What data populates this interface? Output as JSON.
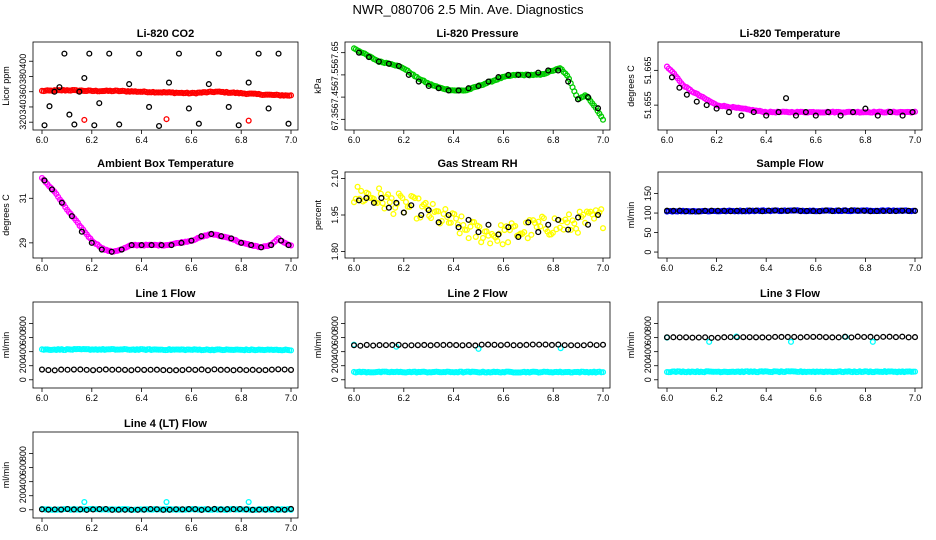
{
  "page_title": "NWR_080706  2.5 Min. Ave. Diagnostics",
  "colors": {
    "black": "#000000",
    "red": "#ff0000",
    "green": "#00cc00",
    "magenta": "#ff00ff",
    "yellow": "#ffff00",
    "blue": "#0000ff",
    "cyan": "#00ffff"
  },
  "chart_data": [
    {
      "id": "li820-co2",
      "type": "scatter",
      "title": "Li-820 CO2",
      "ylabel": "Licor ppm",
      "xlim": [
        6.0,
        7.0
      ],
      "ylim": [
        315,
        420
      ],
      "xticks": [
        "6.0",
        "6.2",
        "6.4",
        "6.6",
        "6.8",
        "7.0"
      ],
      "yticks": [
        "320",
        "340",
        "360",
        "380",
        "400"
      ],
      "series": [
        {
          "name": "red",
          "color": "#ff0000",
          "x": [
            6.0,
            6.1,
            6.2,
            6.3,
            6.4,
            6.5,
            6.6,
            6.7,
            6.8,
            6.9,
            6.99
          ],
          "values": [
            361,
            362,
            361,
            361,
            360,
            359,
            358,
            360,
            358,
            356,
            355
          ],
          "dense": true
        },
        {
          "name": "red-outliers",
          "color": "#ff0000",
          "x": [
            6.17,
            6.5,
            6.83
          ],
          "values": [
            323,
            324,
            322
          ]
        },
        {
          "name": "black",
          "color": "#000000",
          "x": [
            6.01,
            6.03,
            6.05,
            6.07,
            6.09,
            6.11,
            6.13,
            6.15,
            6.17,
            6.19,
            6.21,
            6.23,
            6.27,
            6.31,
            6.35,
            6.39,
            6.43,
            6.47,
            6.51,
            6.55,
            6.59,
            6.63,
            6.67,
            6.71,
            6.75,
            6.79,
            6.83,
            6.87,
            6.91,
            6.95,
            6.99
          ],
          "values": [
            316,
            341,
            360,
            366,
            410,
            330,
            317,
            360,
            378,
            410,
            316,
            345,
            410,
            317,
            370,
            410,
            340,
            315,
            372,
            410,
            338,
            318,
            370,
            410,
            340,
            316,
            372,
            410,
            338,
            410,
            318
          ]
        }
      ]
    },
    {
      "id": "li820-pressure",
      "type": "scatter",
      "title": "Li-820 Pressure",
      "ylabel": "kPa",
      "xlim": [
        6.0,
        7.0
      ],
      "ylim": [
        67.32,
        67.68
      ],
      "xticks": [
        "6.0",
        "6.2",
        "6.4",
        "6.6",
        "6.8",
        "7.0"
      ],
      "yticks": [
        "67.35",
        "67.45",
        "67.55",
        "67.65"
      ],
      "series": [
        {
          "name": "green",
          "color": "#00cc00",
          "x": [
            6.0,
            6.05,
            6.1,
            6.15,
            6.2,
            6.25,
            6.3,
            6.35,
            6.4,
            6.45,
            6.5,
            6.55,
            6.6,
            6.65,
            6.7,
            6.75,
            6.8,
            6.83,
            6.86,
            6.9,
            6.93,
            6.96,
            7.0
          ],
          "values": [
            67.67,
            67.64,
            67.61,
            67.6,
            67.58,
            67.54,
            67.51,
            67.49,
            67.48,
            67.48,
            67.5,
            67.52,
            67.54,
            67.55,
            67.55,
            67.55,
            67.57,
            67.58,
            67.54,
            67.44,
            67.46,
            67.42,
            67.35
          ],
          "dense": true
        },
        {
          "name": "black",
          "color": "#000000",
          "x": [
            6.02,
            6.06,
            6.1,
            6.14,
            6.18,
            6.22,
            6.26,
            6.3,
            6.34,
            6.38,
            6.42,
            6.46,
            6.5,
            6.54,
            6.58,
            6.62,
            6.66,
            6.7,
            6.74,
            6.78,
            6.82,
            6.86,
            6.9,
            6.94,
            6.98
          ],
          "values": [
            67.65,
            67.63,
            67.61,
            67.6,
            67.59,
            67.55,
            67.52,
            67.5,
            67.49,
            67.48,
            67.48,
            67.49,
            67.5,
            67.52,
            67.54,
            67.55,
            67.55,
            67.55,
            67.56,
            67.57,
            67.57,
            67.52,
            67.44,
            67.45,
            67.4
          ]
        }
      ]
    },
    {
      "id": "li820-temperature",
      "type": "scatter",
      "title": "Li-820 Temperature",
      "ylabel": "degrees C",
      "xlim": [
        6.0,
        7.0
      ],
      "ylim": [
        51.649,
        51.672
      ],
      "xticks": [
        "6.0",
        "6.2",
        "6.4",
        "6.6",
        "6.8",
        "7.0"
      ],
      "yticks": [
        "51.655",
        "51.665"
      ],
      "series": [
        {
          "name": "magenta",
          "color": "#ff00ff",
          "x": [
            6.0,
            6.03,
            6.06,
            6.1,
            6.15,
            6.2,
            6.3,
            6.4,
            6.5,
            6.6,
            6.7,
            6.8,
            6.9,
            7.0
          ],
          "values": [
            51.666,
            51.664,
            51.661,
            51.659,
            51.657,
            51.655,
            51.654,
            51.653,
            51.653,
            51.653,
            51.653,
            51.653,
            51.653,
            51.653
          ],
          "dense": true
        },
        {
          "name": "black",
          "color": "#000000",
          "x": [
            6.02,
            6.05,
            6.08,
            6.12,
            6.16,
            6.2,
            6.25,
            6.3,
            6.35,
            6.4,
            6.45,
            6.48,
            6.52,
            6.56,
            6.6,
            6.65,
            6.7,
            6.75,
            6.8,
            6.85,
            6.9,
            6.95,
            6.99
          ],
          "values": [
            51.663,
            51.66,
            51.658,
            51.656,
            51.655,
            51.654,
            51.653,
            51.652,
            51.653,
            51.652,
            51.653,
            51.657,
            51.652,
            51.653,
            51.652,
            51.653,
            51.652,
            51.653,
            51.654,
            51.652,
            51.653,
            51.652,
            51.653
          ]
        }
      ]
    },
    {
      "id": "ambient-box-temperature",
      "type": "scatter",
      "title": "Ambient Box Temperature",
      "ylabel": "degrees C",
      "xlim": [
        6.0,
        7.0
      ],
      "ylim": [
        28.5,
        32.0
      ],
      "xticks": [
        "6.0",
        "6.2",
        "6.4",
        "6.6",
        "6.8",
        "7.0"
      ],
      "yticks": [
        "29",
        "31"
      ],
      "series": [
        {
          "name": "magenta",
          "color": "#ff00ff",
          "x": [
            6.0,
            6.05,
            6.1,
            6.15,
            6.2,
            6.25,
            6.28,
            6.32,
            6.36,
            6.4,
            6.45,
            6.5,
            6.55,
            6.6,
            6.65,
            6.68,
            6.72,
            6.76,
            6.8,
            6.84,
            6.88,
            6.92,
            6.95,
            6.97,
            7.0
          ],
          "values": [
            31.9,
            31.3,
            30.5,
            29.8,
            29.1,
            28.7,
            28.6,
            28.7,
            28.9,
            28.9,
            28.9,
            28.9,
            29.0,
            29.1,
            29.3,
            29.4,
            29.3,
            29.2,
            29.0,
            28.9,
            28.8,
            28.9,
            29.2,
            29.0,
            28.9
          ],
          "dense": true
        },
        {
          "name": "black",
          "color": "#000000",
          "x": [
            6.01,
            6.04,
            6.08,
            6.12,
            6.16,
            6.2,
            6.24,
            6.28,
            6.32,
            6.36,
            6.4,
            6.44,
            6.48,
            6.52,
            6.56,
            6.6,
            6.64,
            6.68,
            6.72,
            6.76,
            6.8,
            6.84,
            6.88,
            6.92,
            6.96,
            6.99
          ],
          "values": [
            31.8,
            31.4,
            30.8,
            30.2,
            29.5,
            29.0,
            28.7,
            28.6,
            28.7,
            28.9,
            28.9,
            28.9,
            28.9,
            28.9,
            29.0,
            29.1,
            29.3,
            29.4,
            29.3,
            29.2,
            29.0,
            28.9,
            28.8,
            28.9,
            29.1,
            28.9
          ]
        }
      ]
    },
    {
      "id": "gas-stream-rh",
      "type": "scatter",
      "title": "Gas Stream RH",
      "ylabel": "percent",
      "xlim": [
        6.0,
        7.0
      ],
      "ylim": [
        1.79,
        2.11
      ],
      "xticks": [
        "6.0",
        "6.2",
        "6.4",
        "6.6",
        "6.8",
        "7.0"
      ],
      "yticks": [
        "1.80",
        "1.95",
        "2.10"
      ],
      "series": [
        {
          "name": "yellow",
          "color": "#ffff00",
          "x": [
            6.0,
            6.05,
            6.1,
            6.15,
            6.2,
            6.25,
            6.3,
            6.35,
            6.4,
            6.45,
            6.5,
            6.55,
            6.6,
            6.65,
            6.7,
            6.75,
            6.8,
            6.85,
            6.9,
            6.95,
            7.0
          ],
          "values": [
            2.03,
            2.03,
            2.02,
            2.0,
            1.99,
            1.98,
            1.96,
            1.94,
            1.92,
            1.89,
            1.88,
            1.87,
            1.87,
            1.88,
            1.89,
            1.9,
            1.91,
            1.91,
            1.92,
            1.93,
            1.94
          ],
          "dense": true,
          "spread": 0.09
        },
        {
          "name": "black",
          "color": "#000000",
          "x": [
            6.02,
            6.05,
            6.08,
            6.11,
            6.14,
            6.17,
            6.2,
            6.23,
            6.27,
            6.3,
            6.34,
            6.38,
            6.42,
            6.46,
            6.5,
            6.54,
            6.58,
            6.62,
            6.66,
            6.7,
            6.74,
            6.78,
            6.82,
            6.86,
            6.9,
            6.94,
            6.98
          ],
          "values": [
            2.01,
            2.02,
            2.0,
            2.02,
            1.98,
            2.0,
            1.96,
            1.99,
            1.95,
            1.97,
            1.92,
            1.95,
            1.9,
            1.93,
            1.88,
            1.91,
            1.87,
            1.9,
            1.86,
            1.92,
            1.88,
            1.91,
            1.93,
            1.89,
            1.94,
            1.91,
            1.95
          ]
        }
      ]
    },
    {
      "id": "sample-flow",
      "type": "scatter",
      "title": "Sample Flow",
      "ylabel": "ml/min",
      "xlim": [
        6.0,
        7.0
      ],
      "ylim": [
        -5,
        195
      ],
      "xticks": [
        "6.0",
        "6.2",
        "6.4",
        "6.6",
        "6.8",
        "7.0"
      ],
      "yticks": [
        "0",
        "50",
        "100",
        "150"
      ],
      "series": [
        {
          "name": "blue",
          "color": "#0000ff",
          "x": [
            6.0,
            6.2,
            6.4,
            6.6,
            6.8,
            7.0
          ],
          "values": [
            105,
            105,
            106,
            106,
            106,
            106
          ],
          "dense": true
        },
        {
          "name": "black",
          "color": "#000000",
          "x": [
            6.0,
            6.2,
            6.4,
            6.6,
            6.8,
            7.0
          ],
          "values": [
            105,
            105,
            106,
            106,
            106,
            106
          ],
          "dense": true,
          "sparse_sample": true
        }
      ]
    },
    {
      "id": "line-1-flow",
      "type": "scatter",
      "title": "Line 1 Flow",
      "ylabel": "ml/min",
      "xlim": [
        6.0,
        7.0
      ],
      "ylim": [
        -60,
        1050
      ],
      "xticks": [
        "6.0",
        "6.2",
        "6.4",
        "6.6",
        "6.8",
        "7.0"
      ],
      "yticks": [
        "0",
        "200",
        "400",
        "600",
        "800"
      ],
      "series": [
        {
          "name": "cyan",
          "color": "#00ffff",
          "x": [
            6.0,
            6.2,
            6.4,
            6.6,
            6.8,
            7.0
          ],
          "values": [
            430,
            432,
            430,
            428,
            426,
            425
          ],
          "dense": true
        },
        {
          "name": "black",
          "color": "#000000",
          "x": [
            6.0,
            6.2,
            6.4,
            6.6,
            6.8,
            7.0
          ],
          "values": [
            140,
            142,
            141,
            142,
            143,
            143
          ],
          "dense": true,
          "sparse_sample": true
        }
      ]
    },
    {
      "id": "line-2-flow",
      "type": "scatter",
      "title": "Line 2 Flow",
      "ylabel": "ml/min",
      "xlim": [
        6.0,
        7.0
      ],
      "ylim": [
        -60,
        1050
      ],
      "xticks": [
        "6.0",
        "6.2",
        "6.4",
        "6.6",
        "6.8",
        "7.0"
      ],
      "yticks": [
        "0",
        "200",
        "400",
        "600",
        "800"
      ],
      "series": [
        {
          "name": "cyan",
          "color": "#00ffff",
          "x": [
            6.0,
            6.2,
            6.4,
            6.6,
            6.8,
            7.0
          ],
          "values": [
            110,
            110,
            110,
            110,
            110,
            110
          ],
          "dense": true
        },
        {
          "name": "cyan-upper",
          "color": "#00ffff",
          "x": [
            6.0,
            6.17,
            6.5,
            6.83
          ],
          "values": [
            500,
            470,
            440,
            450
          ]
        },
        {
          "name": "black",
          "color": "#000000",
          "x": [
            6.0,
            6.2,
            6.4,
            6.6,
            6.8,
            7.0
          ],
          "values": [
            490,
            492,
            494,
            496,
            497,
            498
          ],
          "dense": true,
          "sparse_sample": true
        }
      ]
    },
    {
      "id": "line-3-flow",
      "type": "scatter",
      "title": "Line 3 Flow",
      "ylabel": "ml/min",
      "xlim": [
        6.0,
        7.0
      ],
      "ylim": [
        -60,
        1050
      ],
      "xticks": [
        "6.0",
        "6.2",
        "6.4",
        "6.6",
        "6.8",
        "7.0"
      ],
      "yticks": [
        "0",
        "200",
        "400",
        "600",
        "800"
      ],
      "series": [
        {
          "name": "cyan",
          "color": "#00ffff",
          "x": [
            6.0,
            6.2,
            6.4,
            6.6,
            6.8,
            7.0
          ],
          "values": [
            115,
            115,
            115,
            115,
            115,
            115
          ],
          "dense": true
        },
        {
          "name": "cyan-upper",
          "color": "#00ffff",
          "x": [
            6.0,
            6.17,
            6.28,
            6.5,
            6.72,
            6.83
          ],
          "values": [
            600,
            540,
            615,
            540,
            610,
            540
          ]
        },
        {
          "name": "black",
          "color": "#000000",
          "x": [
            6.0,
            6.2,
            6.4,
            6.6,
            6.8,
            7.0
          ],
          "values": [
            600,
            603,
            605,
            607,
            608,
            610
          ],
          "dense": true,
          "sparse_sample": true
        }
      ]
    },
    {
      "id": "line-4-flow",
      "type": "scatter",
      "title": "Line 4 (LT) Flow",
      "ylabel": "ml/min",
      "xlim": [
        6.0,
        7.0
      ],
      "ylim": [
        -60,
        1050
      ],
      "xticks": [
        "6.0",
        "6.2",
        "6.4",
        "6.6",
        "6.8",
        "7.0"
      ],
      "yticks": [
        "0",
        "200",
        "400",
        "600",
        "800"
      ],
      "series": [
        {
          "name": "cyan",
          "color": "#00ffff",
          "x": [
            6.0,
            6.2,
            6.4,
            6.6,
            6.8,
            7.0
          ],
          "values": [
            5,
            5,
            5,
            5,
            5,
            5
          ],
          "dense": true
        },
        {
          "name": "cyan-outliers",
          "color": "#00ffff",
          "x": [
            6.17,
            6.5,
            6.83
          ],
          "values": [
            110,
            110,
            110
          ]
        },
        {
          "name": "black",
          "color": "#000000",
          "x": [
            6.0,
            6.2,
            6.4,
            6.6,
            6.8,
            7.0
          ],
          "values": [
            5,
            5,
            5,
            5,
            5,
            5
          ],
          "dense": true,
          "sparse_sample": true
        }
      ]
    }
  ]
}
